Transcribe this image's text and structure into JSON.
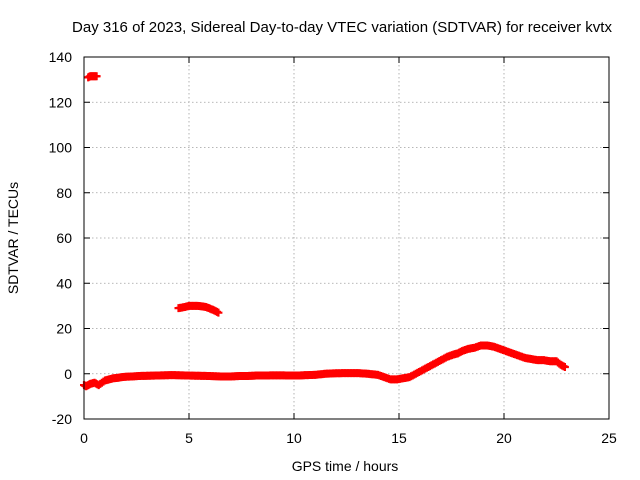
{
  "chart_data": {
    "type": "scatter",
    "title": "Day 316 of 2023, Sidereal Day-to-day VTEC variation (SDTVAR) for receiver kvtx",
    "xlabel": "GPS time / hours",
    "ylabel": "SDTVAR / TECUs",
    "xlim": [
      0,
      25
    ],
    "ylim": [
      -20,
      140
    ],
    "xticks": [
      0,
      5,
      10,
      15,
      20,
      25
    ],
    "yticks": [
      -20,
      0,
      20,
      40,
      60,
      80,
      100,
      120,
      140
    ],
    "xtick_labels": [
      "0",
      "5",
      "10",
      "15",
      "20",
      "25"
    ],
    "ytick_labels": [
      "-20",
      "0",
      "20",
      "40",
      "60",
      "80",
      "100",
      "120",
      "140"
    ],
    "grid": true,
    "marker": "+",
    "colors": {
      "series": "#ff0000",
      "grid": "#a0a0a0",
      "axis": "#000000"
    },
    "series": [
      {
        "name": "main",
        "x": [
          0.0,
          0.1,
          0.2,
          0.3,
          0.5,
          0.7,
          1.0,
          1.2,
          1.4,
          1.6,
          1.8,
          2.0,
          2.3,
          2.6,
          3.0,
          3.4,
          3.8,
          4.2,
          4.6,
          5.0,
          5.5,
          6.0,
          6.5,
          7.0,
          7.4,
          7.8,
          8.2,
          8.6,
          9.0,
          9.4,
          9.8,
          10.2,
          10.6,
          11.0,
          11.5,
          12.0,
          12.5,
          13.0,
          13.5,
          14.0,
          14.3,
          14.6,
          14.9,
          15.2,
          15.5,
          15.8,
          16.1,
          16.4,
          16.7,
          17.0,
          17.3,
          17.6,
          17.8,
          18.0,
          18.3,
          18.6,
          18.9,
          19.2,
          19.5,
          19.8,
          20.1,
          20.4,
          20.7,
          21.0,
          21.3,
          21.6,
          21.9,
          22.2,
          22.5,
          22.7,
          22.9
        ],
        "y": [
          -5,
          -5.5,
          -5,
          -4.5,
          -4,
          -5,
          -3,
          -2.5,
          -2,
          -1.8,
          -1.5,
          -1.3,
          -1.2,
          -1,
          -0.9,
          -0.8,
          -0.7,
          -0.6,
          -0.7,
          -0.8,
          -0.9,
          -1,
          -1.2,
          -1.2,
          -1,
          -1,
          -0.8,
          -0.8,
          -0.7,
          -0.7,
          -0.8,
          -0.8,
          -0.6,
          -0.5,
          0,
          0.2,
          0.3,
          0.3,
          0,
          -0.5,
          -1.5,
          -2.5,
          -2.5,
          -2,
          -1.5,
          0,
          1.5,
          3,
          4.5,
          6,
          7.5,
          8.5,
          9,
          10,
          11,
          11.5,
          12.5,
          12.5,
          12,
          11,
          10,
          9,
          8,
          7,
          6.5,
          6,
          6,
          5.5,
          5.5,
          4,
          3
        ]
      },
      {
        "name": "arc",
        "x": [
          4.5,
          4.8,
          5.0,
          5.2,
          5.4,
          5.6,
          5.8,
          6.0,
          6.2,
          6.4
        ],
        "y": [
          29,
          29.5,
          30,
          30,
          30,
          29.8,
          29.5,
          28.8,
          28,
          27
        ]
      },
      {
        "name": "outlier",
        "x": [
          0.2,
          0.3,
          0.4,
          0.5,
          0.6
        ],
        "y": [
          131,
          131.5,
          131.5,
          131.5,
          131.5
        ]
      }
    ]
  }
}
